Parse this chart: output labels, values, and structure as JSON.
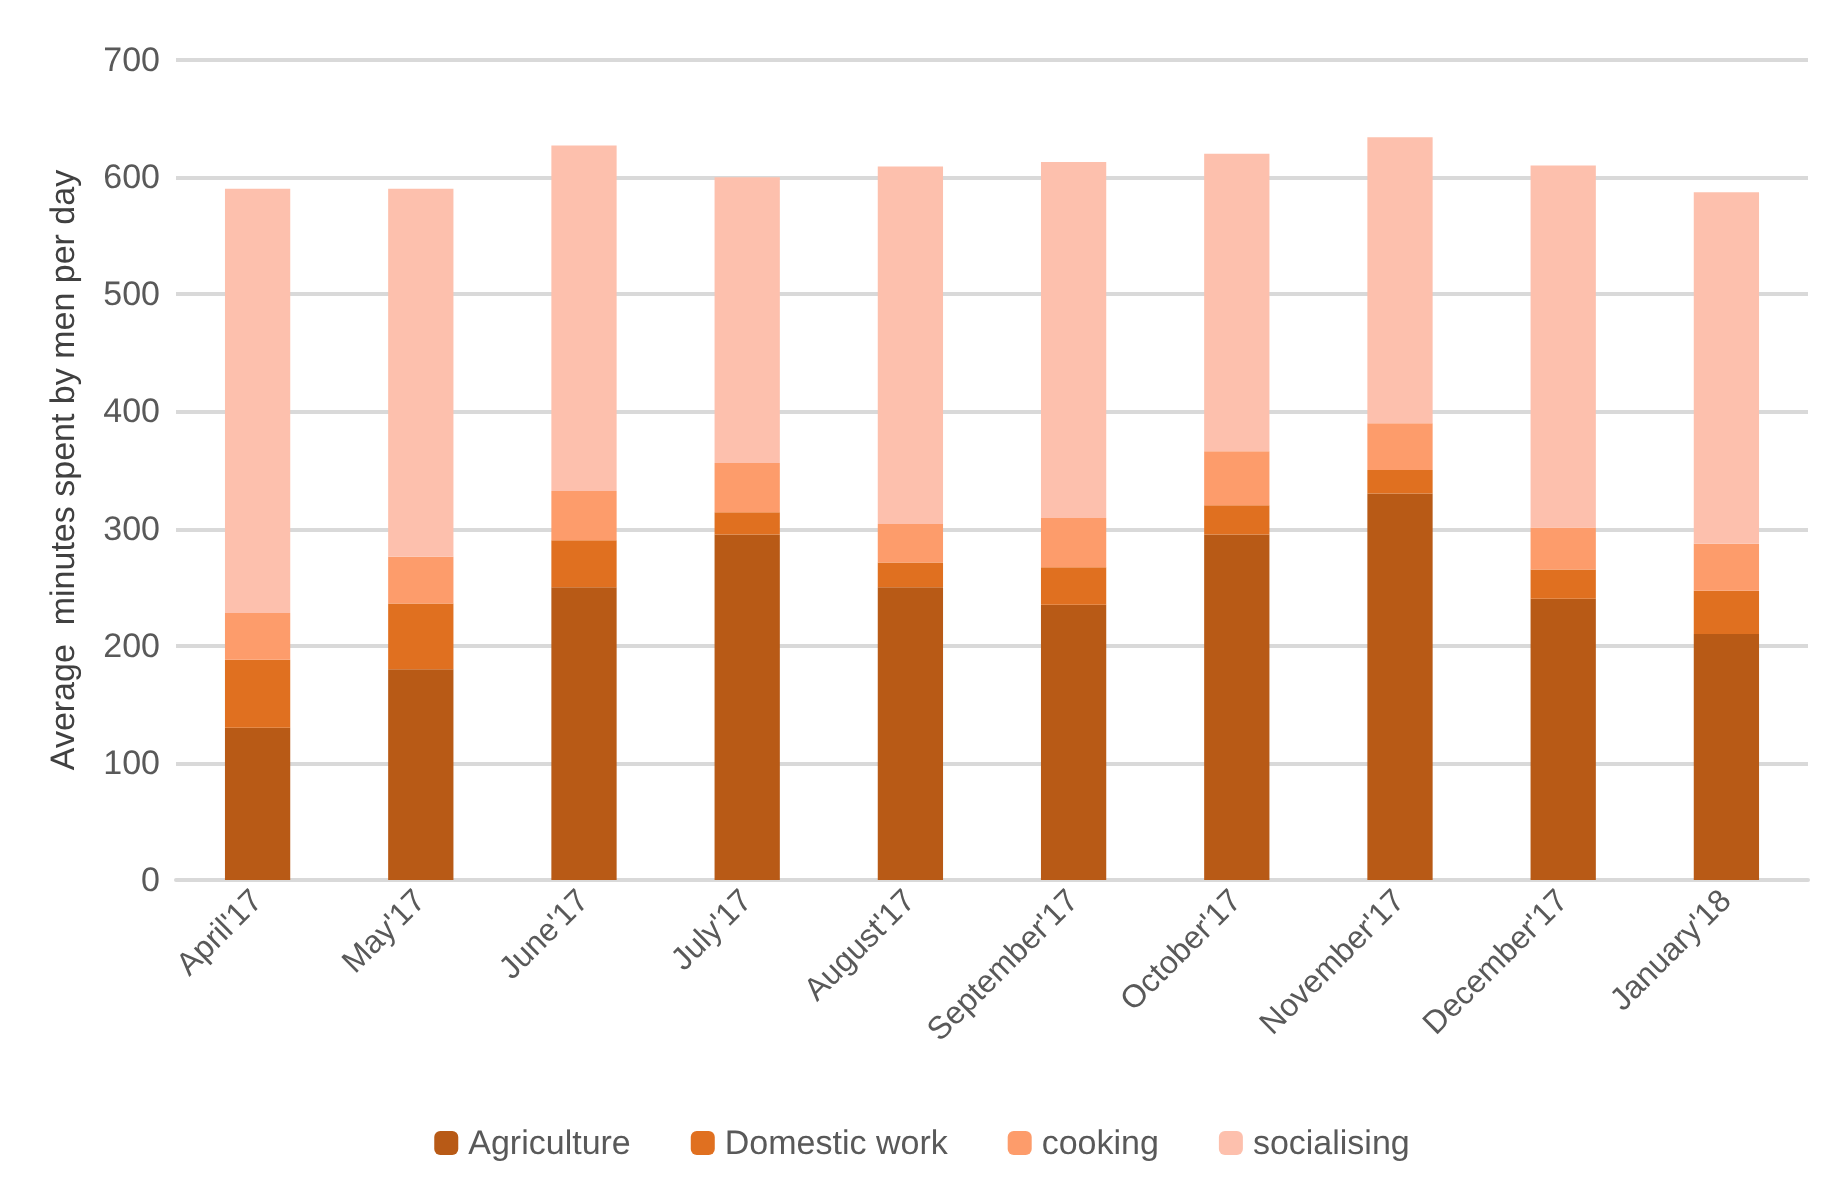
{
  "chart_data": {
    "type": "bar",
    "stacked": true,
    "ylabel": "Average  minutes spent by men per day",
    "categories": [
      "April'17",
      "May'17",
      "June'17",
      "July'17",
      "August'17",
      "September'17",
      "October'17",
      "November'17",
      "December'17",
      "January'18"
    ],
    "series": [
      {
        "name": "Agriculture",
        "color": "#b85a16",
        "values": [
          130,
          180,
          250,
          295,
          250,
          235,
          295,
          330,
          240,
          210
        ]
      },
      {
        "name": "Domestic work",
        "color": "#e07020",
        "values": [
          58,
          56,
          40,
          19,
          21,
          32,
          25,
          20,
          25,
          37
        ]
      },
      {
        "name": "cooking",
        "color": "#fd9c6b",
        "values": [
          40,
          40,
          42,
          42,
          33,
          42,
          46,
          40,
          36,
          40
        ]
      },
      {
        "name": "socialising",
        "color": "#fdc0ad",
        "values": [
          362,
          314,
          295,
          244,
          305,
          304,
          254,
          244,
          309,
          300
        ]
      }
    ],
    "ylim": [
      0,
      700
    ],
    "yticks": [
      0,
      100,
      200,
      300,
      400,
      500,
      600,
      700
    ],
    "grid": "y",
    "legend": "bottom"
  }
}
